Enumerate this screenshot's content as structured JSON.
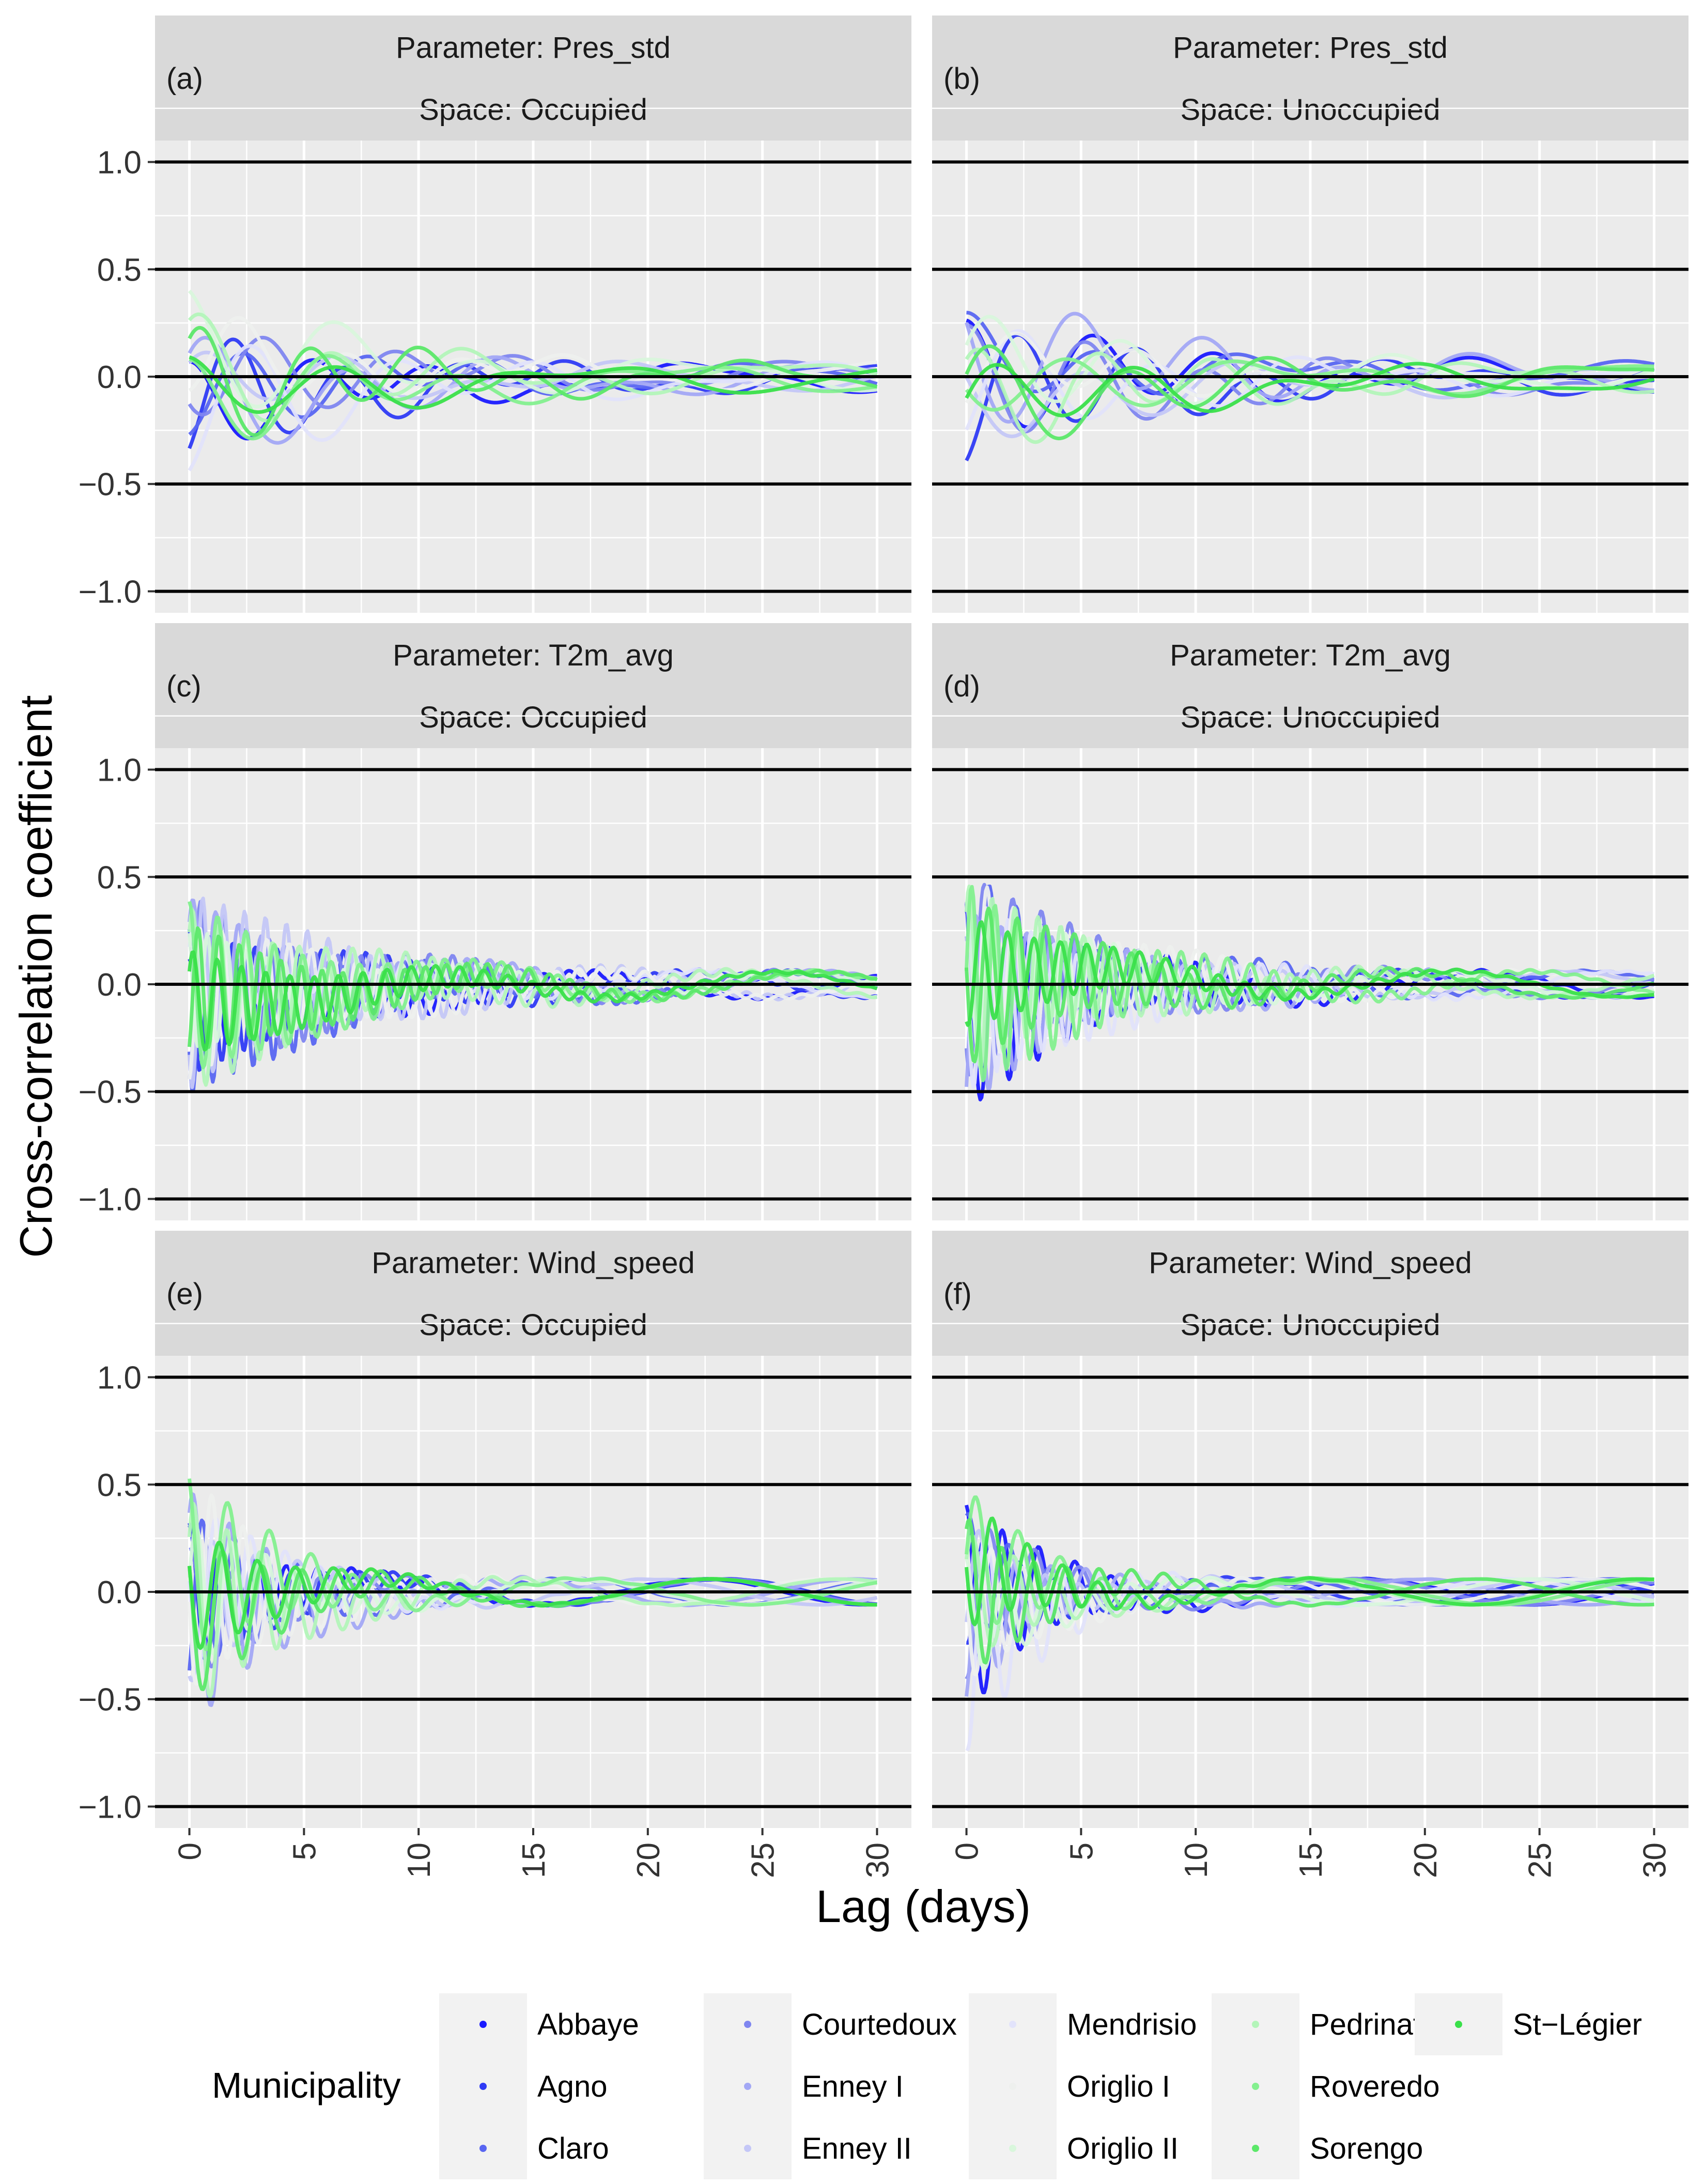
{
  "chart_data": {
    "type": "line",
    "xlabel": "Lag (days)",
    "ylabel": "Cross-correlation coefficient",
    "xlim": [
      -1.5,
      31.5
    ],
    "ylim": [
      -1.1,
      1.1
    ],
    "xticks": [
      "0",
      "5",
      "10",
      "15",
      "20",
      "25",
      "30"
    ],
    "xtick_values": [
      0,
      5,
      10,
      15,
      20,
      25,
      30
    ],
    "yticks": [
      "1.0",
      "0.5",
      "0.0",
      "-0.5",
      "-1.0"
    ],
    "ytick_values": [
      1.0,
      0.5,
      0.0,
      -0.5,
      -1.0
    ],
    "reference_lines": [
      1.0,
      0.5,
      0.0,
      -0.5,
      -1.0
    ],
    "panels": [
      {
        "tag": "(a)",
        "parameter_label": "Parameter: Pres_std",
        "space_label": "Space: Occupied",
        "seed": 11,
        "decay": 9,
        "period": 5.5,
        "amp": 0.32
      },
      {
        "tag": "(b)",
        "parameter_label": "Parameter: Pres_std",
        "space_label": "Space: Unoccupied",
        "seed": 23,
        "decay": 10,
        "period": 5.5,
        "amp": 0.34
      },
      {
        "tag": "(c)",
        "parameter_label": "Parameter: T2m_avg",
        "space_label": "Space: Occupied",
        "seed": 37,
        "decay": 7,
        "period": 1.0,
        "amp": 0.42
      },
      {
        "tag": "(d)",
        "parameter_label": "Parameter: T2m_avg",
        "space_label": "Space: Unoccupied",
        "seed": 41,
        "decay": 6,
        "period": 1.0,
        "amp": 0.45
      },
      {
        "tag": "(e)",
        "parameter_label": "Parameter: Wind_speed",
        "space_label": "Space: Occupied",
        "seed": 53,
        "decay": 4,
        "period": 1.6,
        "amp": 0.55
      },
      {
        "tag": "(f)",
        "parameter_label": "Parameter: Wind_speed",
        "space_label": "Space: Unoccupied",
        "seed": 67,
        "decay": 3.5,
        "period": 1.6,
        "amp": 0.55
      }
    ],
    "legend": {
      "title": "Municipality",
      "placement": "bottom",
      "entries": [
        {
          "name": "Abbaye",
          "color": "#1a1aff"
        },
        {
          "name": "Agno",
          "color": "#2f3bf5"
        },
        {
          "name": "Claro",
          "color": "#5966f2"
        },
        {
          "name": "Courtedoux",
          "color": "#7f86f0"
        },
        {
          "name": "Enney I",
          "color": "#a3a8f5"
        },
        {
          "name": "Enney II",
          "color": "#c4c7f7"
        },
        {
          "name": "Mendrisio",
          "color": "#e2e3fb"
        },
        {
          "name": "Origlio I",
          "color": "#eef0ee"
        },
        {
          "name": "Origlio II",
          "color": "#d9f7dc"
        },
        {
          "name": "Pedrinate",
          "color": "#b3f5b9"
        },
        {
          "name": "Roveredo",
          "color": "#84f08f"
        },
        {
          "name": "Sorengo",
          "color": "#5ce869"
        },
        {
          "name": "St-Légier",
          "color": "#3ae04a"
        }
      ]
    }
  }
}
